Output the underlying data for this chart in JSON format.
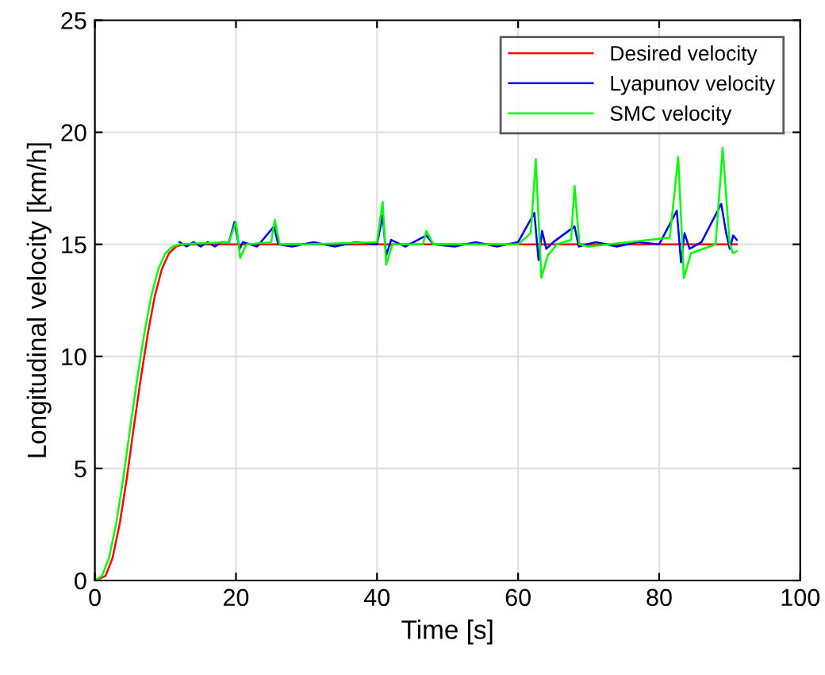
{
  "chart_data": {
    "type": "line",
    "xlabel": "Time [s]",
    "ylabel": "Longitudinal velocity [km/h]",
    "xlim": [
      0,
      100
    ],
    "ylim": [
      0,
      25
    ],
    "xticks": [
      0,
      20,
      40,
      60,
      80,
      100
    ],
    "yticks": [
      0,
      5,
      10,
      15,
      20,
      25
    ],
    "grid": true,
    "legend": "top right",
    "line_style": "solid",
    "marker": "none",
    "series": [
      {
        "name": "Desired velocity",
        "color": "#ff0000",
        "x": [
          0,
          1.5,
          2.5,
          3.5,
          4.5,
          5.5,
          6.5,
          7.5,
          8.5,
          9.5,
          10.5,
          11.5,
          12.5,
          91
        ],
        "values": [
          0,
          0.2,
          1,
          2.5,
          4.5,
          6.8,
          9,
          11,
          12.7,
          13.9,
          14.6,
          14.9,
          15,
          15
        ]
      },
      {
        "name": "Lyapunov velocity",
        "color": "#0000ff",
        "x": [
          12,
          13,
          14,
          15,
          16,
          17,
          18,
          19,
          19.8,
          20.5,
          21,
          23,
          25.4,
          26,
          28,
          31,
          34,
          37,
          40,
          40.8,
          41.3,
          42,
          44,
          47,
          48,
          51,
          54,
          57,
          60,
          62.3,
          62.9,
          63.4,
          64,
          65,
          68,
          68.6,
          71,
          74,
          77,
          80,
          82.5,
          83.1,
          83.6,
          84.3,
          86,
          88.8,
          89.5,
          90,
          90.5,
          91
        ],
        "values": [
          15.1,
          14.9,
          15.1,
          14.9,
          15.1,
          14.9,
          15.1,
          15.1,
          16.0,
          14.8,
          15.1,
          14.9,
          15.8,
          15.0,
          14.9,
          15.1,
          14.9,
          15.1,
          15.0,
          16.3,
          14.5,
          15.2,
          14.9,
          15.4,
          15.0,
          14.9,
          15.1,
          14.9,
          15.1,
          16.4,
          14.3,
          15.6,
          14.8,
          15.1,
          15.8,
          14.9,
          15.1,
          14.9,
          15.1,
          15.0,
          16.5,
          14.2,
          15.5,
          14.8,
          15.1,
          16.8,
          15.5,
          14.8,
          15.4,
          15.2
        ]
      },
      {
        "name": "SMC velocity",
        "color": "#00ff00",
        "x": [
          0,
          1,
          2,
          3,
          4,
          5,
          6,
          7,
          8,
          9,
          10,
          11,
          12,
          19,
          20,
          20.6,
          21.5,
          25,
          25.5,
          26.2,
          30,
          40,
          40.8,
          41.3,
          42.2,
          46.5,
          47,
          48,
          60,
          61.8,
          62.5,
          63.3,
          64.2,
          65.5,
          67.5,
          68,
          68.7,
          70,
          81.5,
          82.7,
          83.5,
          84.5,
          88,
          89,
          90,
          90.5,
          91
        ],
        "values": [
          0,
          0.2,
          1,
          2.5,
          4.5,
          6.8,
          9,
          11,
          12.7,
          13.9,
          14.6,
          14.9,
          15,
          15.1,
          16.0,
          14.4,
          15.0,
          15.1,
          16.1,
          15.0,
          15.0,
          15.1,
          16.9,
          14.1,
          15.0,
          15.0,
          15.6,
          15.0,
          15.0,
          15.5,
          18.8,
          13.5,
          14.5,
          15.0,
          15.2,
          17.6,
          15.0,
          14.9,
          15.3,
          18.9,
          13.5,
          14.6,
          15.0,
          19.3,
          15.0,
          14.6,
          14.7
        ]
      }
    ]
  }
}
